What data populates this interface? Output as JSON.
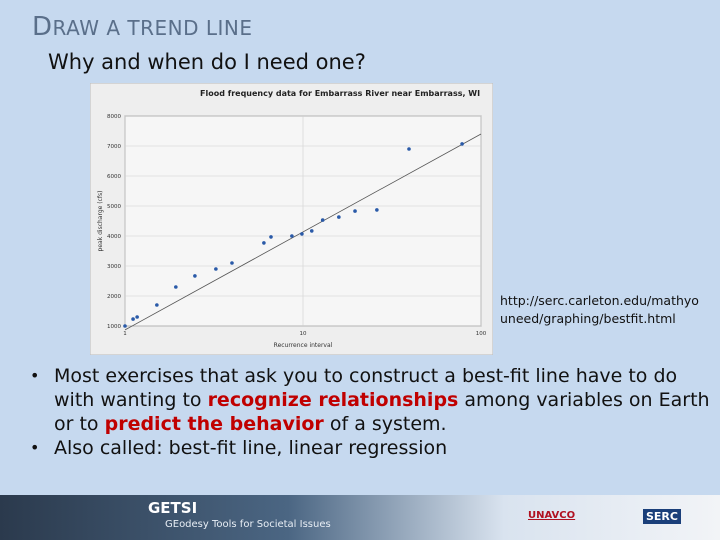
{
  "slide": {
    "title": "DRAW A TREND LINE",
    "subtitle": "Why and when do I need one?",
    "source_url": "http://serc.carleton.edu/mathyouneed/graphing/bestfit.html",
    "bullets": [
      {
        "parts": [
          {
            "text": "Most exercises that ask you to construct a best-fit line have to do with wanting to "
          },
          {
            "text": "recognize relationships",
            "color": "#c00000"
          },
          {
            "text": " among variables on Earth or to "
          },
          {
            "text": "predict the behavior",
            "color": "#c00000"
          },
          {
            "text": " of a system."
          }
        ]
      },
      {
        "parts": [
          {
            "text": "Also called: best-fit line, linear regression"
          }
        ]
      }
    ],
    "footer": {
      "brand": "GETSI",
      "tagline": "GEodesy Tools for Societal Issues",
      "logos": [
        "UNAVCO",
        "SERC"
      ]
    }
  },
  "chart_data": {
    "type": "scatter",
    "title": "Flood frequency data for Embarrass River near Embarrass, WI",
    "x_label": "Recurrence interval",
    "y_label": "peak discharge (cfs)",
    "xscale": "log",
    "xlim": [
      1,
      100
    ],
    "xticks": [
      1,
      10,
      100
    ],
    "ylim": [
      1000,
      8000
    ],
    "yticks": [
      1000,
      2000,
      3000,
      4000,
      5000,
      6000,
      7000,
      8000
    ],
    "grid": true,
    "points": {
      "color": "#2a5aa8",
      "x": [
        1.0,
        1.11,
        1.17,
        1.51,
        1.93,
        2.47,
        3.24,
        3.99,
        6.03,
        6.61,
        8.66,
        9.86,
        11.2,
        12.9,
        15.9,
        19.6,
        26.0,
        39.4,
        78.3
      ],
      "values": [
        1000,
        1230,
        1300,
        1700,
        2300,
        2670,
        2900,
        3100,
        3770,
        3970,
        4000,
        4070,
        4170,
        4530,
        4630,
        4830,
        4870,
        6900,
        7070
      ]
    },
    "trend_line": {
      "color": "#555555",
      "x": [
        1,
        100
      ],
      "values": [
        870,
        7400
      ]
    }
  }
}
